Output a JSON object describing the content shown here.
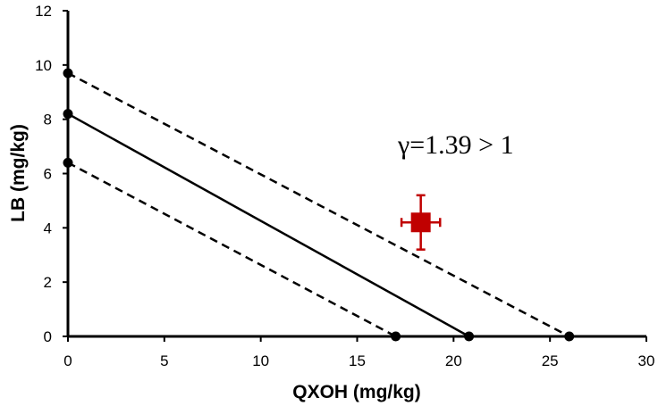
{
  "chart_data": {
    "type": "line",
    "xlabel": "QXOH (mg/kg)",
    "ylabel": "LB (mg/kg)",
    "xlim": [
      0,
      30
    ],
    "ylim": [
      0,
      12
    ],
    "x_ticks": [
      "0",
      "5",
      "10",
      "15",
      "20",
      "25",
      "30"
    ],
    "y_ticks": [
      "0",
      "2",
      "4",
      "6",
      "8",
      "10",
      "12"
    ],
    "grid": false,
    "legend": "none",
    "series": [
      {
        "style": "dashed",
        "color": "#000000",
        "points": [
          [
            0,
            9.7
          ],
          [
            26,
            0
          ]
        ]
      },
      {
        "style": "solid",
        "color": "#000000",
        "points": [
          [
            0,
            8.2
          ],
          [
            20.8,
            0
          ]
        ]
      },
      {
        "style": "dashed",
        "color": "#000000",
        "points": [
          [
            0,
            6.4
          ],
          [
            17,
            0
          ]
        ]
      }
    ],
    "marker_point": {
      "x": 18.3,
      "y": 4.2,
      "x_error": 1.0,
      "y_error": 1.0,
      "color": "#c00000",
      "shape": "square"
    },
    "annotation": "γ=1.39 > 1"
  }
}
